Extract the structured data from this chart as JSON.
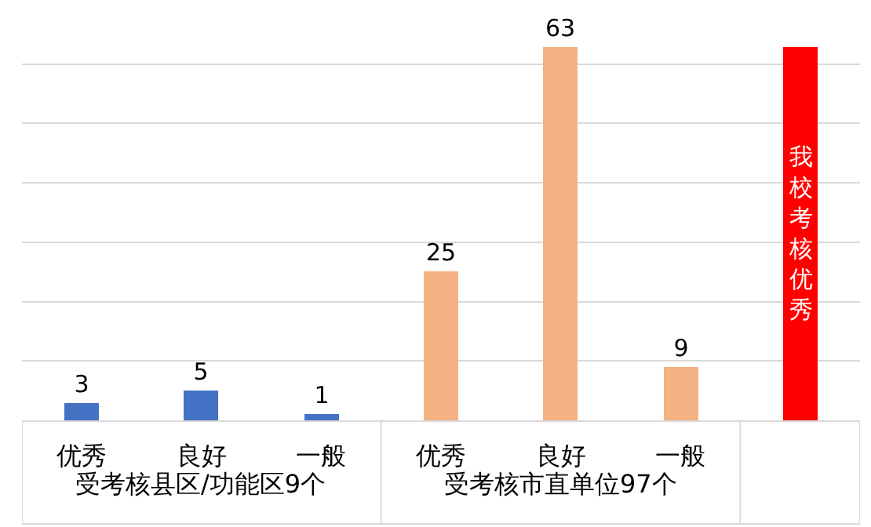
{
  "chart_data": {
    "type": "bar",
    "categories": [
      "优秀",
      "良好",
      "一般",
      "优秀",
      "良好",
      "一般",
      null
    ],
    "values": [
      3,
      5,
      1,
      25,
      63,
      9,
      63
    ],
    "colors": [
      "#4472c4",
      "#4472c4",
      "#4472c4",
      "#f4b183",
      "#f4b183",
      "#f4b183",
      "#ff0000"
    ],
    "value_labels": [
      "3",
      "5",
      "1",
      "25",
      "63",
      "9",
      null
    ],
    "ylim": [
      0,
      70
    ],
    "yticks": [
      {
        "value": 0,
        "label": null
      },
      {
        "value": 10,
        "label": null
      },
      {
        "value": 20,
        "label": null
      },
      {
        "value": 30,
        "label": null
      },
      {
        "value": 40,
        "label": null
      },
      {
        "value": 50,
        "label": null
      },
      {
        "value": 60,
        "label": null
      }
    ],
    "tick_labels": "x",
    "grid": "y",
    "legend": false,
    "annotations": [
      "受考核县区/功能区9个",
      "受考核市直单位97个",
      "我校考核优秀"
    ]
  }
}
